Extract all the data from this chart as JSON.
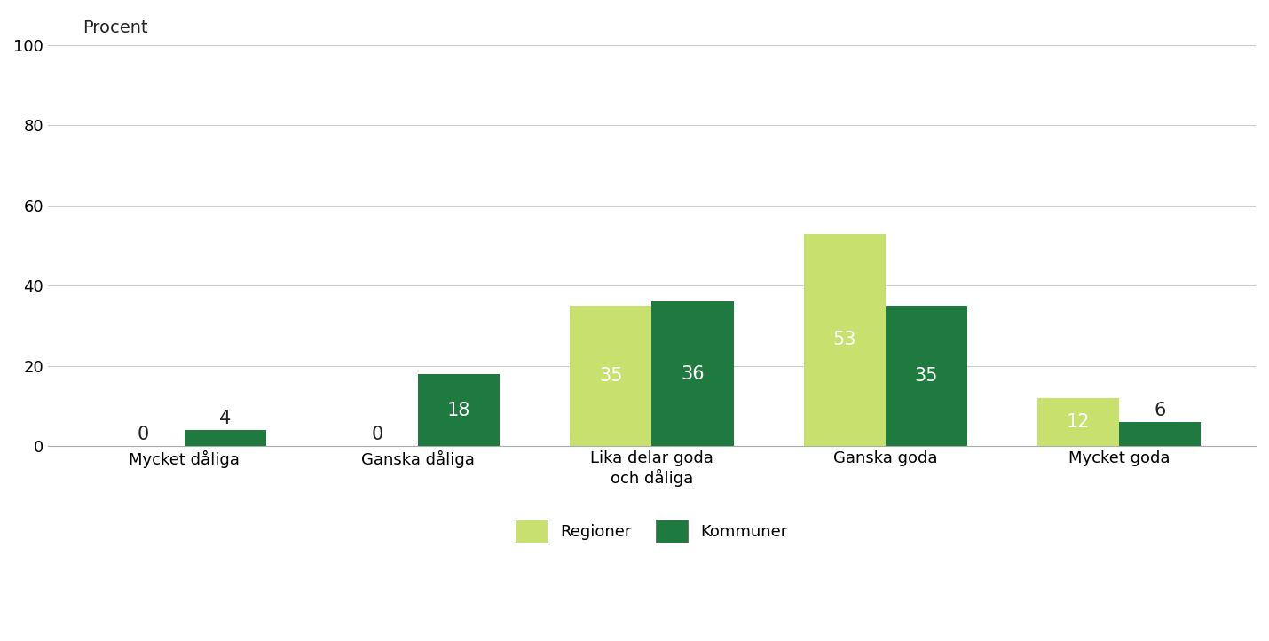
{
  "categories": [
    "Mycket dåliga",
    "Ganska dåliga",
    "Lika delar goda\noch dåliga",
    "Ganska goda",
    "Mycket goda"
  ],
  "regioner": [
    0,
    0,
    35,
    53,
    12
  ],
  "kommuner": [
    4,
    18,
    36,
    35,
    6
  ],
  "color_regioner": "#c8e06e",
  "color_kommuner": "#1e7a3e",
  "ylabel": "Procent",
  "ylim": [
    0,
    100
  ],
  "yticks": [
    0,
    20,
    40,
    60,
    80,
    100
  ],
  "bar_width": 0.35,
  "bg_color": "#ffffff",
  "grid_color": "#cccccc",
  "legend_labels": [
    "Regioner",
    "Kommuner"
  ],
  "label_color_light": "#ffffff",
  "label_color_dark": "#222222",
  "label_fontsize": 15,
  "tick_fontsize": 13,
  "ylabel_fontsize": 14
}
